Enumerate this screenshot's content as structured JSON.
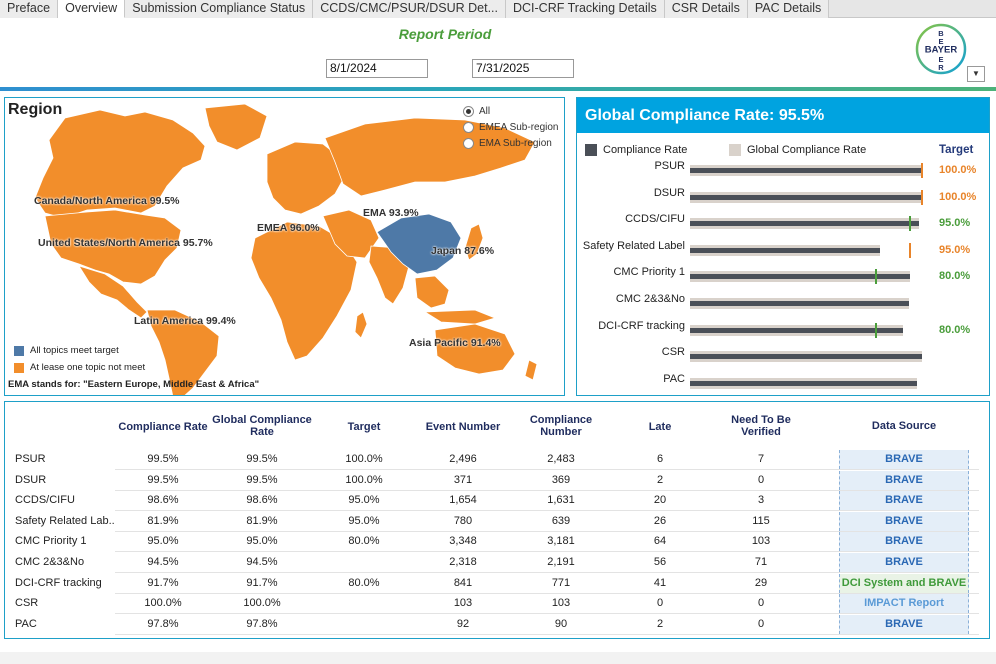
{
  "tabs": [
    {
      "label": "Preface"
    },
    {
      "label": "Overview",
      "active": true
    },
    {
      "label": "Submission Compliance Status"
    },
    {
      "label": "CCDS/CMC/PSUR/DSUR Det..."
    },
    {
      "label": "DCI-CRF Tracking Details"
    },
    {
      "label": "CSR Details"
    },
    {
      "label": "PAC Details"
    }
  ],
  "header": {
    "title": "Report Period",
    "start_date": "8/1/2024",
    "end_date": "7/31/2025",
    "logo_text": [
      "BAYER",
      "B",
      "E",
      "R"
    ]
  },
  "region": {
    "title": "Region",
    "filters": [
      {
        "label": "All",
        "checked": true
      },
      {
        "label": "EMEA Sub-region",
        "checked": false
      },
      {
        "label": "EMA Sub-region",
        "checked": false
      }
    ],
    "labels": {
      "canada": "Canada/North America 99.5%",
      "us": "United States/North America 95.7%",
      "latam": "Latin America 99.4%",
      "emea": "EMEA 96.0%",
      "ema": "EMA 93.9%",
      "japan": "Japan 87.6%",
      "apac": "Asia Pacific 91.4%"
    },
    "legend": [
      {
        "label": "All topics meet target",
        "color": "#4e79a7"
      },
      {
        "label": "At lease one topic not meet",
        "color": "#f28e2b"
      }
    ],
    "note": "EMA stands for: \"Eastern Europe, Middle East & Africa\""
  },
  "global": {
    "title": "Global Compliance Rate: 95.5%",
    "legend_rate": "Compliance Rate",
    "legend_global": "Global Compliance Rate",
    "target_header": "Target",
    "rows": [
      {
        "label": "PSUR",
        "rate": 99.5,
        "global": 99.5,
        "target": 100.0,
        "target_label": "100.0%",
        "color": "#e8842a"
      },
      {
        "label": "DSUR",
        "rate": 99.5,
        "global": 99.5,
        "target": 100.0,
        "target_label": "100.0%",
        "color": "#e8842a"
      },
      {
        "label": "CCDS/CIFU",
        "rate": 98.6,
        "global": 98.6,
        "target": 95.0,
        "target_label": "95.0%",
        "color": "#4a9d3b"
      },
      {
        "label": "Safety Related Label",
        "rate": 81.9,
        "global": 81.9,
        "target": 95.0,
        "target_label": "95.0%",
        "color": "#e8842a"
      },
      {
        "label": "CMC Priority 1",
        "rate": 95.0,
        "global": 95.0,
        "target": 80.0,
        "target_label": "80.0%",
        "color": "#4a9d3b"
      },
      {
        "label": "CMC 2&3&No",
        "rate": 94.5,
        "global": 94.5,
        "target": null,
        "target_label": "",
        "color": "#4a9d3b"
      },
      {
        "label": "DCI-CRF tracking",
        "rate": 91.7,
        "global": 91.7,
        "target": 80.0,
        "target_label": "80.0%",
        "color": "#4a9d3b"
      },
      {
        "label": "CSR",
        "rate": 100.0,
        "global": 100.0,
        "target": null,
        "target_label": "",
        "color": "#4a9d3b"
      },
      {
        "label": "PAC",
        "rate": 97.8,
        "global": 97.8,
        "target": null,
        "target_label": "",
        "color": "#4a9d3b"
      }
    ]
  },
  "table": {
    "headers": [
      "Compliance Rate",
      "Global Compliance Rate",
      "Target",
      "Event Number",
      "Compliance Number",
      "Late",
      "Need To Be Verified",
      "Data Source"
    ],
    "rows": [
      {
        "name": "PSUR",
        "rate": "99.5%",
        "global": "99.5%",
        "target": "100.0%",
        "events": "2,496",
        "compliance": "2,483",
        "late": "6",
        "verify": "7",
        "source": "BRAVE",
        "style": ""
      },
      {
        "name": "DSUR",
        "rate": "99.5%",
        "global": "99.5%",
        "target": "100.0%",
        "events": "371",
        "compliance": "369",
        "late": "2",
        "verify": "0",
        "source": "BRAVE",
        "style": ""
      },
      {
        "name": "CCDS/CIFU",
        "rate": "98.6%",
        "global": "98.6%",
        "target": "95.0%",
        "events": "1,654",
        "compliance": "1,631",
        "late": "20",
        "verify": "3",
        "source": "BRAVE",
        "style": ""
      },
      {
        "name": "Safety Related Lab..",
        "rate": "81.9%",
        "global": "81.9%",
        "target": "95.0%",
        "events": "780",
        "compliance": "639",
        "late": "26",
        "verify": "115",
        "source": "BRAVE",
        "style": ""
      },
      {
        "name": "CMC Priority 1",
        "rate": "95.0%",
        "global": "95.0%",
        "target": "80.0%",
        "events": "3,348",
        "compliance": "3,181",
        "late": "64",
        "verify": "103",
        "source": "BRAVE",
        "style": ""
      },
      {
        "name": "CMC 2&3&No",
        "rate": "94.5%",
        "global": "94.5%",
        "target": "",
        "events": "2,318",
        "compliance": "2,191",
        "late": "56",
        "verify": "71",
        "source": "BRAVE",
        "style": ""
      },
      {
        "name": "DCI-CRF tracking",
        "rate": "91.7%",
        "global": "91.7%",
        "target": "80.0%",
        "events": "841",
        "compliance": "771",
        "late": "41",
        "verify": "29",
        "source": "DCI System and BRAVE",
        "style": "green"
      },
      {
        "name": "CSR",
        "rate": "100.0%",
        "global": "100.0%",
        "target": "",
        "events": "103",
        "compliance": "103",
        "late": "0",
        "verify": "0",
        "source": "IMPACT Report",
        "style": "light"
      },
      {
        "name": "PAC",
        "rate": "97.8%",
        "global": "97.8%",
        "target": "",
        "events": "92",
        "compliance": "90",
        "late": "2",
        "verify": "0",
        "source": "BRAVE",
        "style": ""
      }
    ]
  },
  "colors": {
    "accent": "#00a3e0",
    "orange": "#f28e2b",
    "blue": "#4e79a7",
    "green": "#4a9d3b"
  }
}
